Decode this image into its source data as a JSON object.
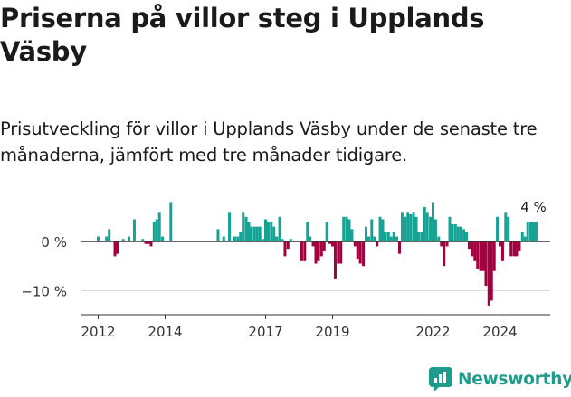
{
  "header": {
    "title": "Priserna på villor steg i Upplands Väsby",
    "subtitle": "Prisutveckling för villor i Upplands Väsby under de senaste tre månaderna, jämfört med tre månader tidigare."
  },
  "brand": {
    "name": "Newsworthy"
  },
  "colors": {
    "positive": "#16a394",
    "negative": "#a3003f",
    "grid": "#d9d9d9",
    "axis": "#333333"
  },
  "chart_data": {
    "type": "bar",
    "title": "Priserna på villor steg i Upplands Väsby",
    "subtitle": "Prisutveckling för villor i Upplands Väsby under de senaste tre månaderna, jämfört med tre månader tidigare.",
    "unit": "%",
    "xlabel": "",
    "ylabel": "",
    "ylim": [
      -14,
      8
    ],
    "yticks": [
      0,
      -10
    ],
    "ytick_labels": [
      "0 %",
      "−10 %"
    ],
    "xtick_labels": [
      {
        "label": "2012",
        "x": 2012.0
      },
      {
        "label": "2014",
        "x": 2014.0
      },
      {
        "label": "2017",
        "x": 2017.0
      },
      {
        "label": "2019",
        "x": 2019.0
      },
      {
        "label": "2022",
        "x": 2022.0
      },
      {
        "label": "2024",
        "x": 2024.0
      }
    ],
    "x_range": [
      2011.5,
      2025.5
    ],
    "last_value_label": "4 %",
    "data": [
      {
        "x": 2012.0,
        "y": 1
      },
      {
        "x": 2012.25,
        "y": 1
      },
      {
        "x": 2012.33,
        "y": 2.5
      },
      {
        "x": 2012.5,
        "y": -3
      },
      {
        "x": 2012.58,
        "y": -2.5
      },
      {
        "x": 2012.75,
        "y": 0.5
      },
      {
        "x": 2012.92,
        "y": 1
      },
      {
        "x": 2013.08,
        "y": 4.5
      },
      {
        "x": 2013.33,
        "y": 0.5
      },
      {
        "x": 2013.42,
        "y": -0.5
      },
      {
        "x": 2013.5,
        "y": -0.5
      },
      {
        "x": 2013.58,
        "y": -1
      },
      {
        "x": 2013.67,
        "y": 4
      },
      {
        "x": 2013.75,
        "y": 4.5
      },
      {
        "x": 2013.83,
        "y": 6
      },
      {
        "x": 2013.92,
        "y": 1
      },
      {
        "x": 2014.17,
        "y": 8
      },
      {
        "x": 2015.58,
        "y": 2.5
      },
      {
        "x": 2015.75,
        "y": 1
      },
      {
        "x": 2015.92,
        "y": 6
      },
      {
        "x": 2016.08,
        "y": 1
      },
      {
        "x": 2016.17,
        "y": 1
      },
      {
        "x": 2016.25,
        "y": 2
      },
      {
        "x": 2016.33,
        "y": 6
      },
      {
        "x": 2016.42,
        "y": 5
      },
      {
        "x": 2016.5,
        "y": 4
      },
      {
        "x": 2016.58,
        "y": 3
      },
      {
        "x": 2016.67,
        "y": 3
      },
      {
        "x": 2016.75,
        "y": 3
      },
      {
        "x": 2016.83,
        "y": 3
      },
      {
        "x": 2016.92,
        "y": 0.5
      },
      {
        "x": 2017.0,
        "y": 4.5
      },
      {
        "x": 2017.08,
        "y": 4
      },
      {
        "x": 2017.17,
        "y": 4
      },
      {
        "x": 2017.25,
        "y": 3
      },
      {
        "x": 2017.33,
        "y": 1
      },
      {
        "x": 2017.42,
        "y": 5
      },
      {
        "x": 2017.5,
        "y": 0.5
      },
      {
        "x": 2017.58,
        "y": -3
      },
      {
        "x": 2017.67,
        "y": -1.5
      },
      {
        "x": 2017.75,
        "y": 0.5
      },
      {
        "x": 2018.08,
        "y": -4
      },
      {
        "x": 2018.17,
        "y": -4
      },
      {
        "x": 2018.25,
        "y": 4
      },
      {
        "x": 2018.33,
        "y": 1
      },
      {
        "x": 2018.42,
        "y": -1
      },
      {
        "x": 2018.5,
        "y": -4.5
      },
      {
        "x": 2018.58,
        "y": -4
      },
      {
        "x": 2018.67,
        "y": -3
      },
      {
        "x": 2018.75,
        "y": -2
      },
      {
        "x": 2018.83,
        "y": 4
      },
      {
        "x": 2018.92,
        "y": -0.5
      },
      {
        "x": 2019.0,
        "y": -1
      },
      {
        "x": 2019.08,
        "y": -7.5
      },
      {
        "x": 2019.17,
        "y": -4.5
      },
      {
        "x": 2019.25,
        "y": -4.5
      },
      {
        "x": 2019.33,
        "y": 5
      },
      {
        "x": 2019.42,
        "y": 5
      },
      {
        "x": 2019.5,
        "y": 4.5
      },
      {
        "x": 2019.58,
        "y": 2.5
      },
      {
        "x": 2019.67,
        "y": -1
      },
      {
        "x": 2019.75,
        "y": -3.5
      },
      {
        "x": 2019.83,
        "y": -4.5
      },
      {
        "x": 2019.92,
        "y": -5
      },
      {
        "x": 2020.0,
        "y": 3
      },
      {
        "x": 2020.08,
        "y": 1
      },
      {
        "x": 2020.17,
        "y": 4.5
      },
      {
        "x": 2020.25,
        "y": 1
      },
      {
        "x": 2020.33,
        "y": -1
      },
      {
        "x": 2020.42,
        "y": 5
      },
      {
        "x": 2020.5,
        "y": 4.5
      },
      {
        "x": 2020.58,
        "y": 2
      },
      {
        "x": 2020.67,
        "y": 2
      },
      {
        "x": 2020.75,
        "y": 1
      },
      {
        "x": 2020.83,
        "y": 2
      },
      {
        "x": 2020.92,
        "y": 1
      },
      {
        "x": 2021.0,
        "y": -2.5
      },
      {
        "x": 2021.08,
        "y": 6
      },
      {
        "x": 2021.17,
        "y": 5
      },
      {
        "x": 2021.25,
        "y": 6
      },
      {
        "x": 2021.33,
        "y": 5.5
      },
      {
        "x": 2021.42,
        "y": 6
      },
      {
        "x": 2021.5,
        "y": 5
      },
      {
        "x": 2021.58,
        "y": 2
      },
      {
        "x": 2021.67,
        "y": 2
      },
      {
        "x": 2021.75,
        "y": 7
      },
      {
        "x": 2021.83,
        "y": 6
      },
      {
        "x": 2021.92,
        "y": 5
      },
      {
        "x": 2022.0,
        "y": 8
      },
      {
        "x": 2022.08,
        "y": 4.5
      },
      {
        "x": 2022.17,
        "y": 1
      },
      {
        "x": 2022.25,
        "y": -1
      },
      {
        "x": 2022.33,
        "y": -5
      },
      {
        "x": 2022.42,
        "y": -1
      },
      {
        "x": 2022.5,
        "y": 5
      },
      {
        "x": 2022.58,
        "y": 3.5
      },
      {
        "x": 2022.67,
        "y": 3.5
      },
      {
        "x": 2022.75,
        "y": 3
      },
      {
        "x": 2022.83,
        "y": 3
      },
      {
        "x": 2022.92,
        "y": 2.5
      },
      {
        "x": 2023.0,
        "y": 2
      },
      {
        "x": 2023.08,
        "y": -1.5
      },
      {
        "x": 2023.17,
        "y": -3
      },
      {
        "x": 2023.25,
        "y": -4
      },
      {
        "x": 2023.33,
        "y": -5.5
      },
      {
        "x": 2023.42,
        "y": -6
      },
      {
        "x": 2023.5,
        "y": -6
      },
      {
        "x": 2023.58,
        "y": -9
      },
      {
        "x": 2023.67,
        "y": -13
      },
      {
        "x": 2023.75,
        "y": -12
      },
      {
        "x": 2023.83,
        "y": -6
      },
      {
        "x": 2023.92,
        "y": 5
      },
      {
        "x": 2024.0,
        "y": -1
      },
      {
        "x": 2024.08,
        "y": -4
      },
      {
        "x": 2024.17,
        "y": 6
      },
      {
        "x": 2024.25,
        "y": 5
      },
      {
        "x": 2024.33,
        "y": -3
      },
      {
        "x": 2024.42,
        "y": -3
      },
      {
        "x": 2024.5,
        "y": -3
      },
      {
        "x": 2024.58,
        "y": -2
      },
      {
        "x": 2024.67,
        "y": 2
      },
      {
        "x": 2024.75,
        "y": 1
      },
      {
        "x": 2024.83,
        "y": 4
      },
      {
        "x": 2024.92,
        "y": 4
      },
      {
        "x": 2025.0,
        "y": 4
      },
      {
        "x": 2025.08,
        "y": 4
      }
    ]
  }
}
